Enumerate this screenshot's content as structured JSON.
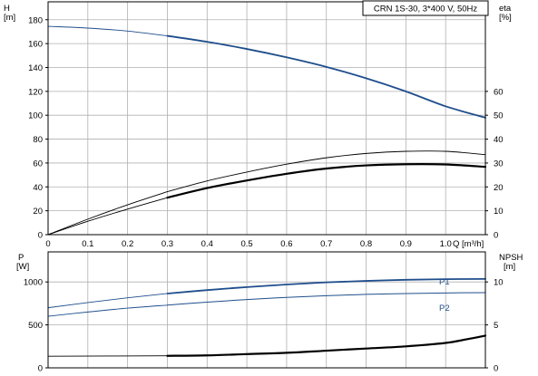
{
  "chart_data": [
    {
      "type": "line",
      "subtype": "pump-curve",
      "title": "CRN 1S-30, 3*400 V, 50Hz",
      "xlabel": "Q [m³/h]",
      "x_axis_labels": {
        "unit": "Q [m³/h]"
      },
      "xlim": [
        0,
        1.1
      ],
      "x_ticks": [
        0,
        0.1,
        0.2,
        0.3,
        0.4,
        0.5,
        0.6,
        0.7,
        0.8,
        0.9,
        1.0
      ],
      "x_tick_labels": [
        "0",
        "0.1",
        "0.2",
        "0.3",
        "0.4",
        "0.5",
        "0.6",
        "0.7",
        "0.8",
        "0.9",
        "1.0"
      ],
      "y_left": {
        "label_symbol": "H",
        "label_unit": "[m]",
        "ylim": [
          0,
          195
        ],
        "ticks": [
          0,
          20,
          40,
          60,
          80,
          100,
          120,
          140,
          160,
          180
        ],
        "tick_labels": [
          "0",
          "20",
          "40",
          "60",
          "80",
          "100",
          "120",
          "140",
          "160",
          "180"
        ]
      },
      "y_right": {
        "label_symbol": "eta",
        "label_unit": "[%]",
        "ylim": [
          0,
          97.5
        ],
        "ticks": [
          0,
          10,
          20,
          30,
          40,
          50,
          60
        ],
        "tick_labels": [
          "0",
          "10",
          "20",
          "30",
          "40",
          "50",
          "60"
        ]
      },
      "grid": true,
      "series": [
        {
          "axis": "left",
          "color": "#1f4e8c",
          "width": 1.8,
          "dash_before": 0.3,
          "x": [
            0,
            0.1,
            0.2,
            0.3,
            0.4,
            0.5,
            0.6,
            0.7,
            0.8,
            0.9,
            1.0,
            1.1
          ],
          "y": [
            174.5,
            173,
            170.5,
            166.5,
            161.5,
            155.5,
            148.5,
            140.5,
            131,
            120,
            107.5,
            98
          ]
        },
        {
          "axis": "right",
          "color": "#000000",
          "width": 0.9,
          "dash_before": 0.3,
          "x": [
            0,
            0.1,
            0.2,
            0.3,
            0.4,
            0.5,
            0.6,
            0.7,
            0.8,
            0.9,
            1.0,
            1.1
          ],
          "y": [
            0,
            6.5,
            12.5,
            18,
            22.5,
            26.2,
            29.5,
            32.2,
            34,
            34.9,
            34.9,
            33.5
          ]
        },
        {
          "axis": "right",
          "color": "#000000",
          "width": 2.2,
          "dash_before": 0.3,
          "x": [
            0,
            0.1,
            0.2,
            0.3,
            0.4,
            0.5,
            0.6,
            0.7,
            0.8,
            0.9,
            1.0,
            1.1
          ],
          "y": [
            0,
            5.6,
            10.7,
            15.5,
            19.5,
            22.7,
            25.5,
            27.7,
            29,
            29.5,
            29.4,
            28.4
          ]
        }
      ]
    },
    {
      "type": "line",
      "subtype": "pump-curve",
      "xlim": [
        0,
        1.1
      ],
      "y_left": {
        "label_symbol": "P",
        "label_unit": "[W]",
        "ylim": [
          0,
          1350
        ],
        "ticks": [
          0,
          500,
          1000
        ],
        "tick_labels": [
          "0",
          "500",
          "1000"
        ]
      },
      "y_right": {
        "label_symbol": "NPSH",
        "label_unit": "[m]",
        "ylim": [
          0,
          13.5
        ],
        "ticks": [
          0,
          5,
          10
        ],
        "tick_labels": [
          "0",
          "5",
          "10"
        ]
      },
      "grid": true,
      "series": [
        {
          "name": "P1",
          "axis": "left",
          "color": "#1f4e8c",
          "width": 1.8,
          "dash_before": 0.3,
          "x": [
            0,
            0.1,
            0.2,
            0.3,
            0.4,
            0.5,
            0.6,
            0.7,
            0.8,
            0.9,
            1.0,
            1.1
          ],
          "y": [
            700,
            760,
            815,
            865,
            905,
            940,
            970,
            995,
            1012,
            1025,
            1032,
            1035
          ]
        },
        {
          "name": "P2",
          "axis": "left",
          "color": "#1f4e8c",
          "width": 1.0,
          "dash_before": 0.3,
          "x": [
            0,
            0.1,
            0.2,
            0.3,
            0.4,
            0.5,
            0.6,
            0.7,
            0.8,
            0.9,
            1.0,
            1.1
          ],
          "y": [
            600,
            650,
            695,
            730,
            765,
            795,
            820,
            840,
            855,
            865,
            872,
            875
          ]
        },
        {
          "axis": "right",
          "color": "#000000",
          "width": 2.2,
          "dash_before": 0.3,
          "x": [
            0,
            0.3,
            0.4,
            0.5,
            0.6,
            0.7,
            0.8,
            0.9,
            1.0,
            1.05,
            1.1
          ],
          "y": [
            1.35,
            1.4,
            1.45,
            1.6,
            1.75,
            2,
            2.25,
            2.5,
            2.9,
            3.3,
            3.75
          ]
        }
      ]
    }
  ]
}
